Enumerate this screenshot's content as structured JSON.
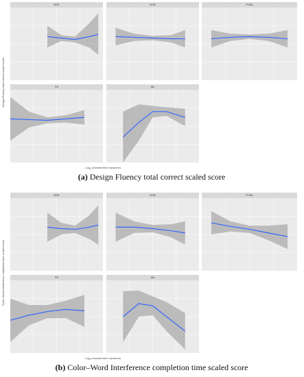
{
  "figures": [
    {
      "label": "(a)",
      "caption": "Design Fluency total correct scaled score",
      "y_label": "Design Fluency total correct scaled score",
      "x_label": "Log₁₀-transformed exposures",
      "xlim": [
        0,
        1
      ],
      "ylim": [
        0,
        1
      ],
      "panels": [
        {
          "strip": "DDE",
          "x": [
            0.4,
            0.55,
            0.7,
            0.85,
            0.95
          ],
          "values": [
            0.6,
            0.58,
            0.56,
            0.6,
            0.63
          ],
          "lower": [
            0.45,
            0.54,
            0.52,
            0.45,
            0.35
          ],
          "upper": [
            0.75,
            0.62,
            0.6,
            0.78,
            0.92
          ]
        },
        {
          "strip": "HCB",
          "x": [
            0.1,
            0.3,
            0.5,
            0.7,
            0.85
          ],
          "values": [
            0.6,
            0.59,
            0.58,
            0.57,
            0.57
          ],
          "lower": [
            0.48,
            0.54,
            0.55,
            0.52,
            0.45
          ],
          "upper": [
            0.72,
            0.64,
            0.61,
            0.62,
            0.69
          ]
        },
        {
          "strip": "PCBs",
          "x": [
            0.1,
            0.3,
            0.5,
            0.7,
            0.9
          ],
          "values": [
            0.57,
            0.59,
            0.6,
            0.59,
            0.57
          ],
          "lower": [
            0.45,
            0.54,
            0.57,
            0.54,
            0.45
          ],
          "upper": [
            0.69,
            0.64,
            0.63,
            0.64,
            0.69
          ]
        },
        {
          "strip": "Pb",
          "x": [
            0.0,
            0.2,
            0.4,
            0.6,
            0.8
          ],
          "values": [
            0.6,
            0.59,
            0.58,
            0.6,
            0.62
          ],
          "lower": [
            0.3,
            0.48,
            0.54,
            0.55,
            0.52
          ],
          "upper": [
            0.9,
            0.7,
            0.62,
            0.65,
            0.72
          ]
        },
        {
          "strip": "Mn",
          "x": [
            0.18,
            0.35,
            0.5,
            0.65,
            0.85
          ],
          "values": [
            0.35,
            0.55,
            0.7,
            0.7,
            0.62
          ],
          "lower": [
            0.0,
            0.3,
            0.62,
            0.64,
            0.5
          ],
          "upper": [
            0.7,
            0.8,
            0.78,
            0.76,
            0.74
          ]
        }
      ]
    },
    {
      "label": "(b)",
      "caption": "Color–Word Interference completion time scaled score",
      "y_label": "Color–Word Interference completion time scaled score",
      "x_label": "Log₁₀-transformed exposures",
      "xlim": [
        0,
        1
      ],
      "ylim": [
        0,
        1
      ],
      "panels": [
        {
          "strip": "DDE",
          "x": [
            0.4,
            0.55,
            0.7,
            0.85,
            0.95
          ],
          "values": [
            0.6,
            0.58,
            0.57,
            0.6,
            0.63
          ],
          "lower": [
            0.4,
            0.5,
            0.52,
            0.44,
            0.36
          ],
          "upper": [
            0.8,
            0.66,
            0.62,
            0.76,
            0.9
          ]
        },
        {
          "strip": "HCB",
          "x": [
            0.1,
            0.3,
            0.5,
            0.7,
            0.85
          ],
          "values": [
            0.6,
            0.6,
            0.58,
            0.55,
            0.52
          ],
          "lower": [
            0.4,
            0.52,
            0.53,
            0.46,
            0.36
          ],
          "upper": [
            0.8,
            0.68,
            0.63,
            0.64,
            0.68
          ]
        },
        {
          "strip": "PCBs",
          "x": [
            0.1,
            0.3,
            0.5,
            0.7,
            0.9
          ],
          "values": [
            0.66,
            0.61,
            0.57,
            0.52,
            0.47
          ],
          "lower": [
            0.5,
            0.54,
            0.52,
            0.42,
            0.3
          ],
          "upper": [
            0.82,
            0.68,
            0.62,
            0.62,
            0.64
          ]
        },
        {
          "strip": "Pb",
          "x": [
            0.0,
            0.2,
            0.4,
            0.6,
            0.8
          ],
          "values": [
            0.45,
            0.52,
            0.57,
            0.6,
            0.58
          ],
          "lower": [
            0.15,
            0.38,
            0.48,
            0.48,
            0.36
          ],
          "upper": [
            0.75,
            0.66,
            0.66,
            0.72,
            0.8
          ]
        },
        {
          "strip": "Mn",
          "x": [
            0.18,
            0.35,
            0.5,
            0.65,
            0.85
          ],
          "values": [
            0.5,
            0.68,
            0.65,
            0.5,
            0.3
          ],
          "lower": [
            0.15,
            0.5,
            0.52,
            0.3,
            0.05
          ],
          "upper": [
            0.85,
            0.86,
            0.78,
            0.7,
            0.55
          ]
        }
      ]
    }
  ]
}
